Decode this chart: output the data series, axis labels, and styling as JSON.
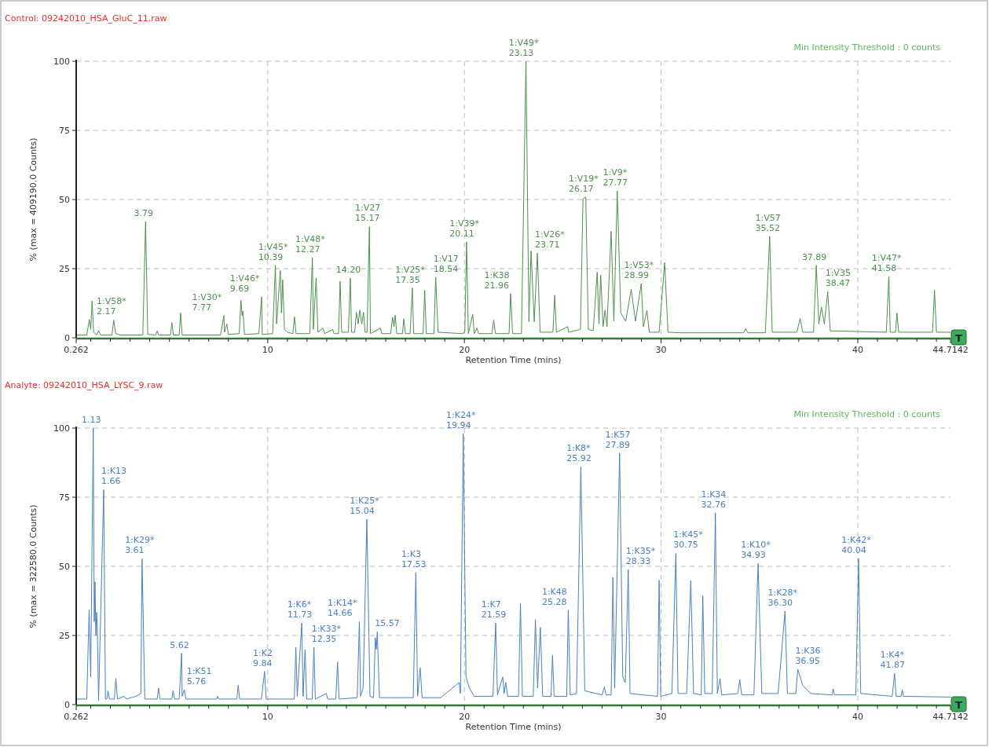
{
  "chart_data": [
    {
      "type": "line",
      "title": "Control: 09242010_HSA_GluC_11.raw",
      "xlabel": "Retention Time (mins)",
      "ylabel": "% (max = 409190.0 Counts)",
      "xlim": [
        0.262,
        44.7142
      ],
      "ylim": [
        0,
        100
      ],
      "xticks": [
        0.262,
        {
          "value": 1,
          "label": null
        },
        {
          "value": 2,
          "label": null
        },
        {
          "value": 3,
          "label": null
        },
        {
          "value": 4,
          "label": null
        },
        {
          "value": 5,
          "label": null
        },
        {
          "value": 6,
          "label": null
        },
        {
          "value": 7,
          "label": null
        },
        {
          "value": 8,
          "label": null
        },
        {
          "value": 9,
          "label": null
        },
        10,
        {
          "value": 11,
          "label": null
        },
        {
          "value": 12,
          "label": null
        },
        {
          "value": 13,
          "label": null
        },
        {
          "value": 14,
          "label": null
        },
        {
          "value": 15,
          "label": null
        },
        {
          "value": 16,
          "label": null
        },
        {
          "value": 17,
          "label": null
        },
        {
          "value": 18,
          "label": null
        },
        {
          "value": 19,
          "label": null
        },
        20,
        {
          "value": 21,
          "label": null
        },
        {
          "value": 22,
          "label": null
        },
        {
          "value": 23,
          "label": null
        },
        {
          "value": 24,
          "label": null
        },
        {
          "value": 25,
          "label": null
        },
        {
          "value": 26,
          "label": null
        },
        {
          "value": 27,
          "label": null
        },
        {
          "value": 28,
          "label": null
        },
        {
          "value": 29,
          "label": null
        },
        30,
        {
          "value": 31,
          "label": null
        },
        {
          "value": 32,
          "label": null
        },
        {
          "value": 33,
          "label": null
        },
        {
          "value": 34,
          "label": null
        },
        {
          "value": 35,
          "label": null
        },
        {
          "value": 36,
          "label": null
        },
        {
          "value": 37,
          "label": null
        },
        {
          "value": 38,
          "label": null
        },
        {
          "value": 39,
          "label": null
        },
        40,
        {
          "value": 41,
          "label": null
        },
        {
          "value": 42,
          "label": null
        },
        {
          "value": 43,
          "label": null
        },
        {
          "value": 44,
          "label": null
        },
        44.7142
      ],
      "yticks": [
        0,
        25,
        50,
        75,
        100
      ],
      "grid": true,
      "series": [
        {
          "color": "#4f8f4f",
          "x": [
            0.262,
            0.8,
            0.93,
            1.0,
            1.07,
            1.15,
            1.3,
            1.4,
            1.5,
            2.08,
            2.17,
            2.27,
            2.5,
            3.65,
            3.79,
            3.9,
            4.3,
            4.38,
            4.45,
            5.05,
            5.13,
            5.2,
            5.5,
            5.57,
            5.65,
            7.6,
            7.77,
            7.8,
            7.92,
            8.0,
            8.55,
            8.64,
            8.7,
            8.74,
            8.82,
            9.55,
            9.69,
            9.72,
            10.25,
            10.39,
            10.45,
            10.64,
            10.7,
            10.76,
            10.85,
            11.0,
            11.28,
            11.36,
            11.44,
            12.14,
            12.27,
            12.32,
            12.46,
            12.55,
            12.8,
            12.9,
            13.3,
            13.38,
            13.6,
            13.68,
            13.76,
            14.1,
            14.2,
            14.26,
            14.42,
            14.51,
            14.6,
            14.68,
            14.78,
            14.87,
            14.95,
            15.05,
            15.17,
            15.22,
            15.73,
            15.8,
            16.25,
            16.35,
            16.42,
            16.48,
            16.56,
            16.85,
            16.92,
            17.0,
            17.24,
            17.35,
            17.42,
            17.9,
            17.98,
            18.06,
            18.45,
            18.54,
            18.66,
            19.9,
            20.02,
            20.11,
            20.2,
            20.42,
            20.5,
            20.64,
            20.72,
            21.4,
            21.49,
            21.58,
            22.27,
            22.35,
            22.45,
            22.9,
            23.13,
            23.28,
            23.39,
            23.55,
            23.71,
            23.85,
            24.5,
            24.59,
            24.68,
            25.25,
            25.3,
            25.9,
            26.03,
            26.17,
            26.3,
            26.55,
            26.75,
            26.84,
            26.93,
            27.05,
            27.15,
            27.25,
            27.46,
            27.6,
            27.77,
            27.95,
            28.2,
            28.48,
            28.7,
            28.99,
            29.1,
            29.28,
            29.4,
            29.9,
            30.18,
            30.35,
            31.0,
            34.2,
            34.3,
            34.4,
            35.3,
            35.52,
            35.65,
            36.9,
            37.07,
            37.2,
            37.75,
            37.89,
            38.02,
            38.15,
            38.3,
            38.47,
            38.6,
            41.45,
            41.58,
            41.65,
            41.92,
            41.99,
            42.08,
            43.8,
            43.9,
            44.0,
            44.7142
          ],
          "values": [
            1,
            1,
            6.6,
            3,
            13.3,
            2,
            1,
            2.5,
            1,
            1,
            6.4,
            1.5,
            1,
            1,
            42,
            1.2,
            1,
            2.5,
            1,
            1,
            5.5,
            1,
            1,
            9,
            1,
            1,
            8,
            2,
            5,
            1.2,
            1.5,
            13.5,
            8,
            9.7,
            1.2,
            1.5,
            14.8,
            1.2,
            1.5,
            26.2,
            5,
            24.3,
            9,
            21,
            3,
            2,
            1.5,
            7.6,
            1.5,
            1.5,
            29,
            3,
            21.6,
            2,
            3.5,
            1.5,
            3,
            1.5,
            1.5,
            20.4,
            2,
            2,
            21.6,
            2,
            2,
            9.2,
            5,
            10,
            5,
            9.2,
            2,
            2,
            40.2,
            1.5,
            3.5,
            1.5,
            1.5,
            7.4,
            4,
            8.2,
            1.5,
            1.5,
            6.8,
            1.5,
            1.5,
            18,
            1.5,
            1.5,
            17.2,
            1.5,
            1.5,
            21.9,
            2,
            1.5,
            2,
            34.6,
            1.5,
            8.5,
            1.5,
            3.5,
            1.5,
            1.5,
            6.4,
            1.5,
            1.5,
            16,
            1.5,
            1.5,
            100,
            5.8,
            31.4,
            5.8,
            30.6,
            2,
            2,
            15.4,
            2,
            4,
            2,
            3,
            50.2,
            50.9,
            3,
            2.5,
            23.7,
            5,
            22.7,
            4,
            10,
            4,
            38.5,
            6,
            53.1,
            9,
            6,
            17.5,
            6,
            19.6,
            4,
            9.9,
            2,
            2,
            27.2,
            2,
            1.8,
            1.8,
            3.3,
            1.8,
            1.8,
            36.7,
            2,
            2,
            7,
            2,
            2,
            26.2,
            5,
            11.1,
            5,
            16.7,
            2.5,
            2,
            22.2,
            2,
            2,
            8.9,
            2,
            2,
            17.2,
            2,
            2
          ]
        }
      ],
      "annotations": [
        "Min Intensity Threshold : 0 counts",
        "T",
        {
          "text": "1:V58*\n2.17",
          "x": 2.17,
          "y": 6.4
        },
        {
          "text": "3.79",
          "x": 3.79,
          "y": 42
        },
        {
          "text": "1:V30*\n7.77",
          "x": 7.77,
          "y": 8
        },
        {
          "text": "1:V46*\n9.69",
          "x": 9.69,
          "y": 14.8
        },
        {
          "text": "1:V45*\n10.39",
          "x": 10.39,
          "y": 26.2
        },
        {
          "text": "1:V48*\n12.27",
          "x": 12.27,
          "y": 29
        },
        {
          "text": "14.20",
          "x": 14.2,
          "y": 21.6
        },
        {
          "text": "1:V27\n15.17",
          "x": 15.17,
          "y": 40.2
        },
        {
          "text": "1:V25*\n17.35",
          "x": 17.35,
          "y": 18
        },
        {
          "text": "1:V17\n18.54",
          "x": 18.54,
          "y": 21.9
        },
        {
          "text": "1:V39*\n20.11",
          "x": 20.11,
          "y": 34.6
        },
        {
          "text": "1:K38\n21.96",
          "x": 22.35,
          "y": 16
        },
        {
          "text": "1:V49*\n23.13",
          "x": 23.13,
          "y": 100
        },
        {
          "text": "1:V26*\n23.71",
          "x": 23.71,
          "y": 30.6
        },
        {
          "text": "1:V19*\n26.17",
          "x": 26.17,
          "y": 50.9
        },
        {
          "text": "1:V9*\n27.77",
          "x": 27.77,
          "y": 53.1
        },
        {
          "text": "1:V53*\n28.99",
          "x": 28.99,
          "y": 19.6
        },
        {
          "text": "1:V57\n35.52",
          "x": 35.52,
          "y": 36.7
        },
        {
          "text": "37.89",
          "x": 37.89,
          "y": 26.2
        },
        {
          "text": "1:V35\n38.47",
          "x": 38.47,
          "y": 16.7
        },
        {
          "text": "1:V47*\n41.58",
          "x": 41.58,
          "y": 22.2
        }
      ]
    },
    {
      "type": "line",
      "title": "Analyte: 09242010_HSA_LYSC_9.raw",
      "xlabel": "Retention Time (mins)",
      "ylabel": "% (max = 322580.0 Counts)",
      "xlim": [
        0.262,
        44.7142
      ],
      "ylim": [
        0,
        100
      ],
      "xticks": [
        0.262,
        {
          "value": 1,
          "label": null
        },
        {
          "value": 2,
          "label": null
        },
        {
          "value": 3,
          "label": null
        },
        {
          "value": 4,
          "label": null
        },
        {
          "value": 5,
          "label": null
        },
        {
          "value": 6,
          "label": null
        },
        {
          "value": 7,
          "label": null
        },
        {
          "value": 8,
          "label": null
        },
        {
          "value": 9,
          "label": null
        },
        10,
        {
          "value": 11,
          "label": null
        },
        {
          "value": 12,
          "label": null
        },
        {
          "value": 13,
          "label": null
        },
        {
          "value": 14,
          "label": null
        },
        {
          "value": 15,
          "label": null
        },
        {
          "value": 16,
          "label": null
        },
        {
          "value": 17,
          "label": null
        },
        {
          "value": 18,
          "label": null
        },
        {
          "value": 19,
          "label": null
        },
        20,
        {
          "value": 21,
          "label": null
        },
        {
          "value": 22,
          "label": null
        },
        {
          "value": 23,
          "label": null
        },
        {
          "value": 24,
          "label": null
        },
        {
          "value": 25,
          "label": null
        },
        {
          "value": 26,
          "label": null
        },
        {
          "value": 27,
          "label": null
        },
        {
          "value": 28,
          "label": null
        },
        {
          "value": 29,
          "label": null
        },
        30,
        {
          "value": 31,
          "label": null
        },
        {
          "value": 32,
          "label": null
        },
        {
          "value": 33,
          "label": null
        },
        {
          "value": 34,
          "label": null
        },
        {
          "value": 35,
          "label": null
        },
        {
          "value": 36,
          "label": null
        },
        {
          "value": 37,
          "label": null
        },
        {
          "value": 38,
          "label": null
        },
        {
          "value": 39,
          "label": null
        },
        40,
        {
          "value": 41,
          "label": null
        },
        {
          "value": 42,
          "label": null
        },
        {
          "value": 43,
          "label": null
        },
        {
          "value": 44,
          "label": null
        },
        44.7142
      ],
      "yticks": [
        0,
        25,
        50,
        75,
        100
      ],
      "grid": true,
      "series": [
        {
          "color": "#4a7fc0",
          "x": [
            0.262,
            0.8,
            0.92,
            1.0,
            1.13,
            1.18,
            1.22,
            1.26,
            1.3,
            1.33,
            1.4,
            1.66,
            1.75,
            1.82,
            1.88,
            1.95,
            2.2,
            2.28,
            2.36,
            2.71,
            2.8,
            3.3,
            3.55,
            3.61,
            3.75,
            4.38,
            4.45,
            4.52,
            5.12,
            5.19,
            5.26,
            5.5,
            5.62,
            5.65,
            5.76,
            5.84,
            7.4,
            7.45,
            7.5,
            8.43,
            8.5,
            8.57,
            9.07,
            9.68,
            9.84,
            9.92,
            11.35,
            11.43,
            11.5,
            11.73,
            11.8,
            11.9,
            11.98,
            12.26,
            12.35,
            12.42,
            12.98,
            13.05,
            13.46,
            13.55,
            13.63,
            14.55,
            14.66,
            14.72,
            14.85,
            15.04,
            15.2,
            15.38,
            15.47,
            15.52,
            15.57,
            15.68,
            16.45,
            17.4,
            17.53,
            17.62,
            17.75,
            17.85,
            18.8,
            19.73,
            19.8,
            19.94,
            20.08,
            20.25,
            20.5,
            21.45,
            21.59,
            21.68,
            21.95,
            22.02,
            22.1,
            22.2,
            22.75,
            22.85,
            22.95,
            23.5,
            23.61,
            23.72,
            23.86,
            23.98,
            24.4,
            24.48,
            24.56,
            25.2,
            25.28,
            25.38,
            25.7,
            25.92,
            26.12,
            27.0,
            27.12,
            27.2,
            27.46,
            27.55,
            27.64,
            27.89,
            28.05,
            28.18,
            28.33,
            28.42,
            29.82,
            29.9,
            29.98,
            30.55,
            30.75,
            30.86,
            31.3,
            31.51,
            31.65,
            32.04,
            32.12,
            32.22,
            32.6,
            32.76,
            32.86,
            33.0,
            33.08,
            33.9,
            34.0,
            34.1,
            34.72,
            34.93,
            35.12,
            35.95,
            36.3,
            36.42,
            36.85,
            36.95,
            37.2,
            37.6,
            38.7,
            38.75,
            38.82,
            39.9,
            40.04,
            40.15,
            41.75,
            41.87,
            41.95,
            42.2,
            42.26,
            42.32,
            44.7142
          ],
          "values": [
            2,
            2,
            34.4,
            10,
            100,
            30,
            44.4,
            25,
            33.4,
            29,
            1.5,
            77.7,
            2,
            2,
            5,
            2,
            2,
            9.5,
            2,
            3,
            2,
            3,
            4,
            52.7,
            2,
            2,
            6,
            2,
            2,
            5,
            2,
            2,
            18.6,
            3,
            5.4,
            2,
            2,
            3,
            2,
            2,
            7,
            2,
            2,
            2,
            12,
            2,
            2,
            20.7,
            3,
            29.5,
            3,
            19.9,
            2,
            2,
            20.7,
            2,
            4,
            2,
            2,
            15.4,
            2,
            2.5,
            30,
            3,
            6,
            67,
            3,
            2.5,
            24.2,
            20,
            26.3,
            2.5,
            2.5,
            2.5,
            47.7,
            3,
            13.3,
            2.5,
            2.5,
            8,
            4,
            98,
            10,
            6,
            3,
            3,
            29.5,
            3.5,
            10,
            4,
            8,
            3,
            3,
            36.5,
            3,
            3,
            30.7,
            6,
            27.9,
            3,
            3,
            17.8,
            3,
            3,
            34.2,
            3.5,
            4,
            86,
            5,
            3.5,
            6.4,
            3.5,
            3.5,
            46,
            6,
            91,
            10,
            8,
            48.8,
            4,
            3,
            45,
            3,
            4,
            54.7,
            4,
            4,
            44.9,
            4,
            3.5,
            39.3,
            4,
            4,
            69.3,
            4,
            9.4,
            3.5,
            4,
            9,
            3.5,
            3.5,
            51,
            4,
            4,
            33.8,
            4,
            4,
            12.8,
            7,
            4,
            3.5,
            5.7,
            3.5,
            3.5,
            52.7,
            4,
            3,
            11.3,
            3,
            3,
            5.4,
            3,
            2.7
          ]
        }
      ],
      "annotations": [
        "Min Intensity Threshold : 0 counts",
        "T",
        {
          "text": "1.13",
          "x": 1.13,
          "y": 100
        },
        {
          "text": "1:K13\n1.66",
          "x": 1.66,
          "y": 77.7
        },
        {
          "text": "1:K29*\n3.61",
          "x": 3.61,
          "y": 52.7
        },
        {
          "text": "5.62",
          "x": 5.62,
          "y": 18.6
        },
        {
          "text": "1:K51\n5.76",
          "x": 5.76,
          "y": 5.4
        },
        {
          "text": "1:K2\n9.84",
          "x": 9.84,
          "y": 12
        },
        {
          "text": "1:K6*\n11.73",
          "x": 11.73,
          "y": 29.5
        },
        {
          "text": "1:K33*\n12.35",
          "x": 12.35,
          "y": 20.7
        },
        {
          "text": "1:K14*\n14.66",
          "x": 14.66,
          "y": 30
        },
        {
          "text": "1:K25*\n15.04",
          "x": 15.04,
          "y": 67
        },
        {
          "text": "15.57",
          "x": 15.57,
          "y": 26.3
        },
        {
          "text": "1:K3\n17.53",
          "x": 17.53,
          "y": 47.7
        },
        {
          "text": "1:K24*\n19.94",
          "x": 19.94,
          "y": 98
        },
        {
          "text": "1:K7\n21.59",
          "x": 21.59,
          "y": 29.5
        },
        {
          "text": "1:K48\n25.28",
          "x": 25.28,
          "y": 34.2
        },
        {
          "text": "1:K8*\n25.92",
          "x": 25.92,
          "y": 86
        },
        {
          "text": "1:K57\n27.89",
          "x": 27.89,
          "y": 91
        },
        {
          "text": "1:K35*\n28.33",
          "x": 28.33,
          "y": 48.8
        },
        {
          "text": "1:K45*\n30.75",
          "x": 30.75,
          "y": 54.7
        },
        {
          "text": "1:K34\n32.76",
          "x": 32.76,
          "y": 69.3
        },
        {
          "text": "1:K10*\n34.93",
          "x": 34.93,
          "y": 51
        },
        {
          "text": "1:K28*\n36.30",
          "x": 36.3,
          "y": 33.8
        },
        {
          "text": "1:K36\n36.95",
          "x": 36.95,
          "y": 12.8
        },
        {
          "text": "1:K42*\n40.04",
          "x": 40.04,
          "y": 52.7
        },
        {
          "text": "1:K4*\n41.87",
          "x": 41.87,
          "y": 11.3
        }
      ]
    }
  ]
}
